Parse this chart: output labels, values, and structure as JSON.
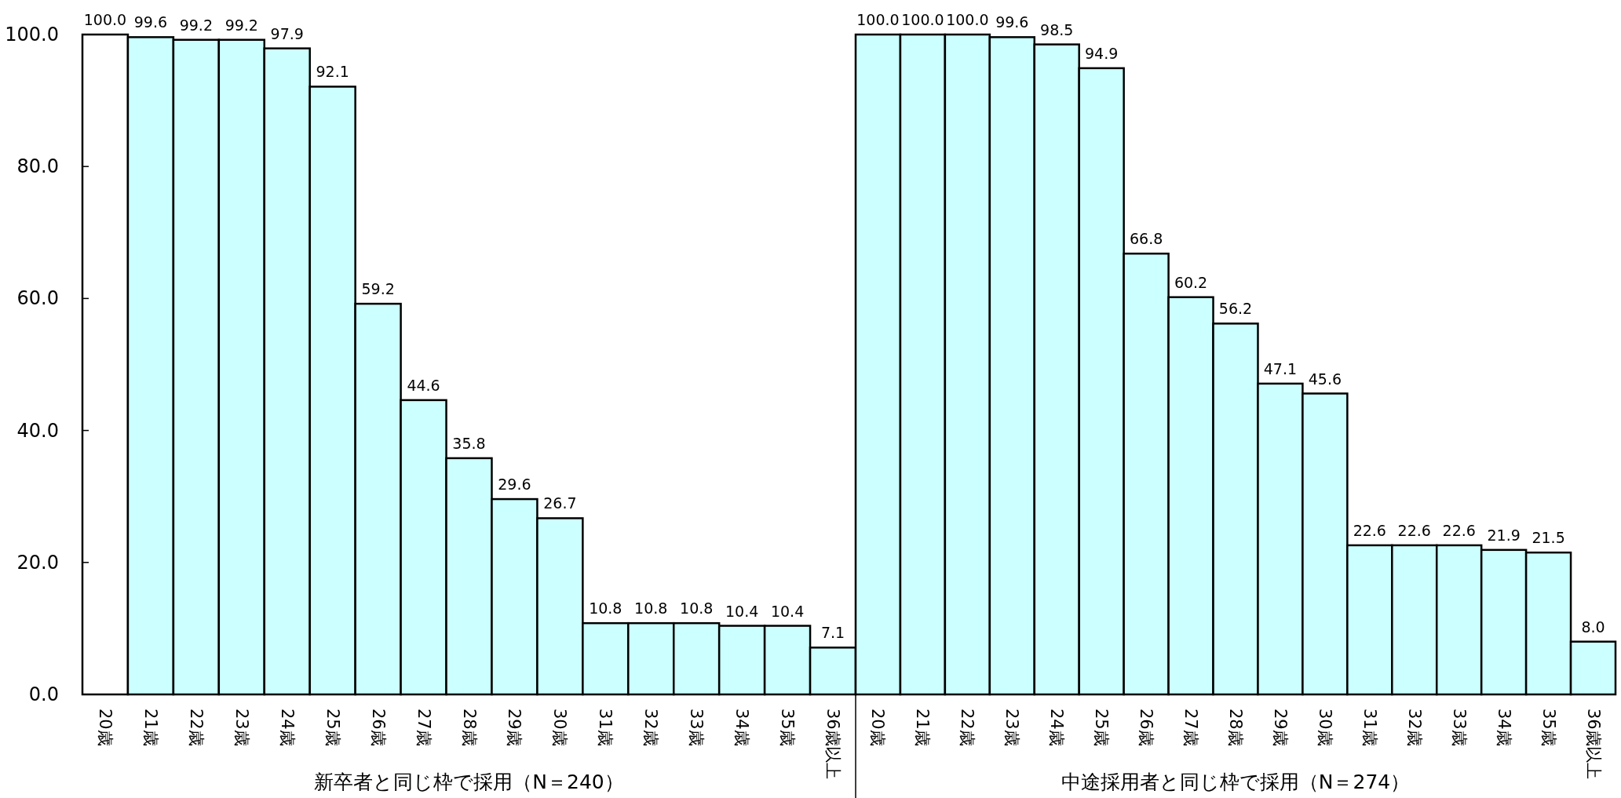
{
  "chart_data": [
    {
      "type": "bar",
      "xlabel": "新卒者と同じ枠で採用（N＝240）",
      "categories": [
        "20歳",
        "21歳",
        "22歳",
        "23歳",
        "24歳",
        "25歳",
        "26歳",
        "27歳",
        "28歳",
        "29歳",
        "30歳",
        "31歳",
        "32歳",
        "33歳",
        "34歳",
        "35歳",
        "36歳以上"
      ],
      "values": [
        100.0,
        99.6,
        99.2,
        99.2,
        97.9,
        92.1,
        59.2,
        44.6,
        35.8,
        29.6,
        26.7,
        10.8,
        10.8,
        10.8,
        10.4,
        10.4,
        7.1
      ],
      "value_labels": [
        "100.0",
        "99.6",
        "99.2",
        "99.2",
        "97.9",
        "92.1",
        "59.2",
        "44.6",
        "35.8",
        "29.6",
        "26.7",
        "10.8",
        "10.8",
        "10.8",
        "10.4",
        "10.4",
        "7.1"
      ],
      "colors": [
        "#ffffff",
        "#ccffff",
        "#ccffff",
        "#ccffff",
        "#ccffff",
        "#ccffff",
        "#ccffff",
        "#ccffff",
        "#ccffff",
        "#ccffff",
        "#ccffff",
        "#ccffff",
        "#ccffff",
        "#ccffff",
        "#ccffff",
        "#ccffff",
        "#ccffff"
      ],
      "ylim": [
        0,
        100
      ],
      "yticks": [
        {
          "value": 0,
          "label": "0.0"
        },
        {
          "value": 20,
          "label": "20.0"
        },
        {
          "value": 40,
          "label": "40.0"
        },
        {
          "value": 60,
          "label": "60.0"
        },
        {
          "value": 80,
          "label": "80.0"
        },
        {
          "value": 100,
          "label": "100.0"
        }
      ]
    },
    {
      "type": "bar",
      "xlabel": "中途採用者と同じ枠で採用（N＝274）",
      "categories": [
        "20歳",
        "21歳",
        "22歳",
        "23歳",
        "24歳",
        "25歳",
        "26歳",
        "27歳",
        "28歳",
        "29歳",
        "30歳",
        "31歳",
        "32歳",
        "33歳",
        "34歳",
        "35歳",
        "36歳以上"
      ],
      "values": [
        100.0,
        100.0,
        100.0,
        99.6,
        98.5,
        94.9,
        66.8,
        60.2,
        56.2,
        47.1,
        45.6,
        22.6,
        22.6,
        22.6,
        21.9,
        21.5,
        8.0
      ],
      "value_labels": [
        "100.0",
        "100.0",
        "100.0",
        "99.6",
        "98.5",
        "94.9",
        "66.8",
        "60.2",
        "56.2",
        "47.1",
        "45.6",
        "22.6",
        "22.6",
        "22.6",
        "21.9",
        "21.5",
        "8.0"
      ],
      "colors": [
        "#ccffff",
        "#ccffff",
        "#ccffff",
        "#ccffff",
        "#ccffff",
        "#ccffff",
        "#ccffff",
        "#ccffff",
        "#ccffff",
        "#ccffff",
        "#ccffff",
        "#ccffff",
        "#ccffff",
        "#ccffff",
        "#ccffff",
        "#ccffff",
        "#ccffff"
      ],
      "ylim": [
        0,
        100
      ],
      "tick_labels": "x"
    }
  ]
}
